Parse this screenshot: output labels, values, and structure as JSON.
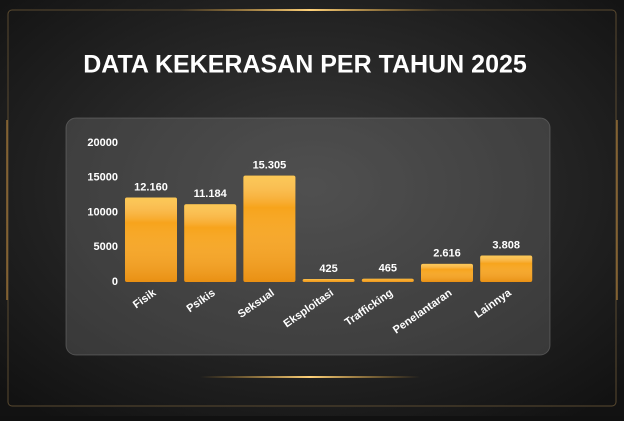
{
  "chart_data": {
    "type": "bar",
    "title": "DATA KEKERASAN PER TAHUN 2025",
    "categories": [
      "Fisik",
      "Psikis",
      "Seksual",
      "Eksploitasi",
      "Trafficking",
      "Penelantaran",
      "Lainnya"
    ],
    "values": [
      12160,
      11184,
      15305,
      425,
      465,
      2616,
      3808
    ],
    "value_labels": [
      "12.160",
      "11.184",
      "15.305",
      "425",
      "465",
      "2.616",
      "3.808"
    ],
    "color": "#f7a41c",
    "ylim": [
      0,
      20000
    ],
    "yticks": [
      0,
      5000,
      10000,
      15000,
      20000
    ]
  }
}
